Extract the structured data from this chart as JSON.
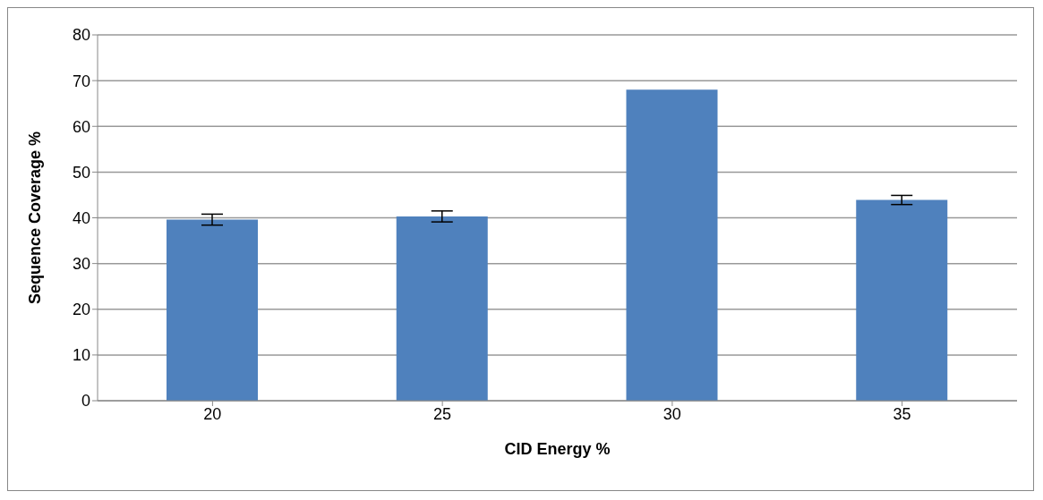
{
  "chart_data": {
    "type": "bar",
    "xlabel": "CID Energy %",
    "ylabel": "Sequence Coverage %",
    "categories": [
      "20",
      "25",
      "30",
      "35"
    ],
    "values": [
      39.6,
      40.3,
      68.0,
      43.9
    ],
    "errors": [
      1.2,
      1.2,
      0,
      1.0
    ],
    "color": "#4f81bd",
    "ylim": [
      0,
      80
    ],
    "yticks": [
      0,
      10,
      20,
      30,
      40,
      50,
      60,
      70,
      80
    ],
    "grid": "y",
    "legend": false
  }
}
